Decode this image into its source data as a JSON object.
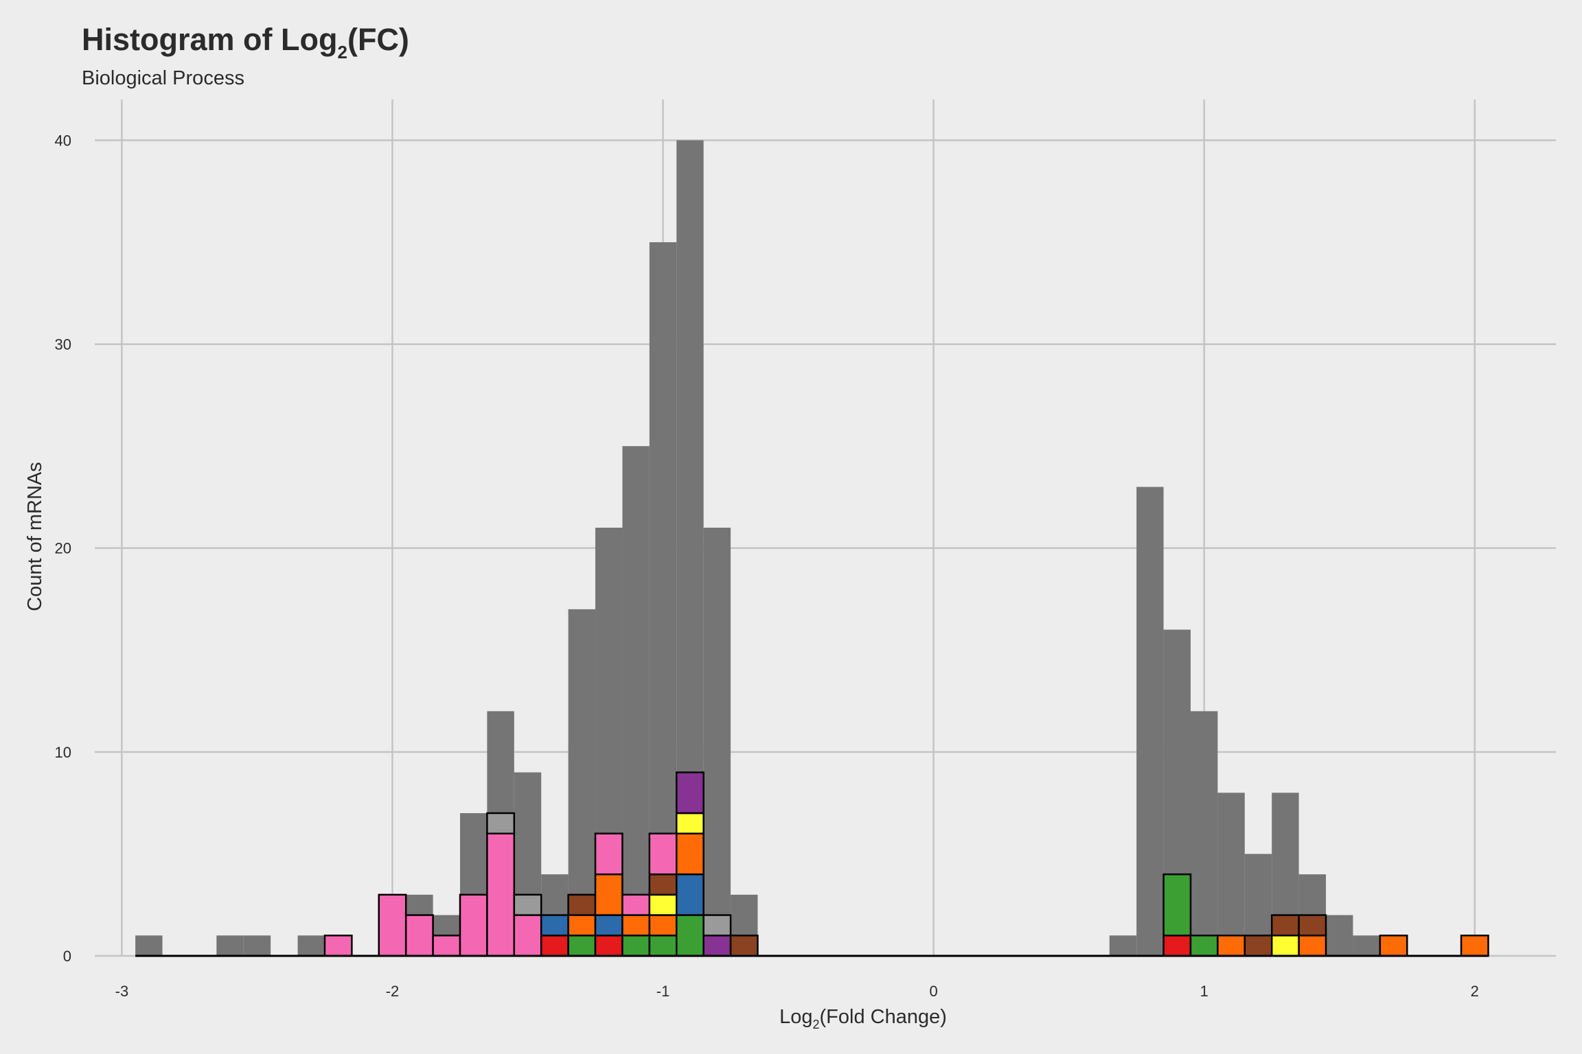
{
  "chart_data": {
    "type": "bar",
    "title": "Histogram of Log",
    "title_sub": "2",
    "title_suffix": "(FC)",
    "subtitle": "Biological Process",
    "xlabel": "Log",
    "xlabel_sub": "2",
    "xlabel_suffix": "(Fold Change)",
    "ylabel": "Count of mRNAs",
    "xlim": [
      -3.1,
      2.3
    ],
    "ylim": [
      0,
      42
    ],
    "x_ticks": [
      -3,
      -2,
      -1,
      0,
      1,
      2
    ],
    "x_tick_labels": [
      "-3",
      "-2",
      "-1",
      "0",
      "1",
      "2"
    ],
    "y_ticks": [
      0,
      10,
      20,
      30,
      40
    ],
    "y_tick_labels": [
      "0",
      "10",
      "20",
      "30",
      "40"
    ],
    "grid": true,
    "bin_width": 0.1,
    "bin_centers": [
      -2.9,
      -2.8,
      -2.7,
      -2.6,
      -2.5,
      -2.4,
      -2.3,
      -2.2,
      -2.1,
      -2.0,
      -1.9,
      -1.8,
      -1.7,
      -1.6,
      -1.5,
      -1.4,
      -1.3,
      -1.2,
      -1.1,
      -1.0,
      -0.9,
      -0.8,
      -0.7,
      -0.6,
      -0.5,
      -0.4,
      -0.3,
      -0.2,
      -0.1,
      0.0,
      0.1,
      0.2,
      0.3,
      0.4,
      0.5,
      0.6,
      0.7,
      0.8,
      0.9,
      1.0,
      1.1,
      1.2,
      1.3,
      1.4,
      1.5,
      1.6,
      1.7,
      1.8,
      1.9,
      2.0
    ],
    "series": [
      {
        "color": "#757575",
        "values": [
          1,
          0,
          0,
          1,
          1,
          0,
          1,
          0,
          0,
          0,
          3,
          2,
          7,
          12,
          9,
          4,
          17,
          21,
          25,
          35,
          40,
          21,
          3,
          0,
          0,
          0,
          0,
          0,
          0,
          0,
          0,
          0,
          0,
          0,
          0,
          0,
          1,
          23,
          16,
          12,
          8,
          5,
          8,
          4,
          2,
          1,
          0,
          0,
          0,
          0
        ]
      },
      {
        "color": "#e41a1c",
        "values": [
          0,
          0,
          0,
          0,
          0,
          0,
          0,
          0,
          0,
          0,
          0,
          0,
          0,
          0,
          0,
          1,
          0,
          1,
          0,
          0,
          0,
          0,
          0,
          0,
          0,
          0,
          0,
          0,
          0,
          0,
          0,
          0,
          0,
          0,
          0,
          0,
          0,
          0,
          1,
          0,
          0,
          0,
          0,
          0,
          0,
          0,
          0,
          0,
          0,
          0
        ]
      },
      {
        "color": "#3b9f34",
        "values": [
          0,
          0,
          0,
          0,
          0,
          0,
          0,
          0,
          0,
          0,
          0,
          0,
          0,
          0,
          0,
          0,
          1,
          0,
          1,
          1,
          2,
          0,
          0,
          0,
          0,
          0,
          0,
          0,
          0,
          0,
          0,
          0,
          0,
          0,
          0,
          0,
          0,
          0,
          3,
          1,
          0,
          0,
          0,
          0,
          0,
          0,
          0,
          0,
          0,
          0
        ]
      },
      {
        "color": "#2b6aab",
        "values": [
          0,
          0,
          0,
          0,
          0,
          0,
          0,
          0,
          0,
          0,
          0,
          0,
          0,
          0,
          0,
          1,
          0,
          1,
          0,
          0,
          2,
          0,
          0,
          0,
          0,
          0,
          0,
          0,
          0,
          0,
          0,
          0,
          0,
          0,
          0,
          0,
          0,
          0,
          0,
          0,
          0,
          0,
          0,
          0,
          0,
          0,
          0,
          0,
          0,
          0
        ]
      },
      {
        "color": "#ff6b06",
        "values": [
          0,
          0,
          0,
          0,
          0,
          0,
          0,
          0,
          0,
          0,
          0,
          0,
          0,
          0,
          0,
          0,
          1,
          2,
          1,
          1,
          2,
          0,
          0,
          0,
          0,
          0,
          0,
          0,
          0,
          0,
          0,
          0,
          0,
          0,
          0,
          0,
          0,
          0,
          0,
          0,
          1,
          0,
          0,
          1,
          0,
          0,
          1,
          0,
          0,
          1
        ]
      },
      {
        "color": "#ffff33",
        "values": [
          0,
          0,
          0,
          0,
          0,
          0,
          0,
          0,
          0,
          0,
          0,
          0,
          0,
          0,
          0,
          0,
          0,
          0,
          0,
          1,
          1,
          0,
          0,
          0,
          0,
          0,
          0,
          0,
          0,
          0,
          0,
          0,
          0,
          0,
          0,
          0,
          0,
          0,
          0,
          0,
          0,
          0,
          1,
          0,
          0,
          0,
          0,
          0,
          0,
          0
        ]
      },
      {
        "color": "#8b4220",
        "values": [
          0,
          0,
          0,
          0,
          0,
          0,
          0,
          0,
          0,
          0,
          0,
          0,
          0,
          0,
          0,
          0,
          1,
          0,
          0,
          1,
          0,
          0,
          1,
          0,
          0,
          0,
          0,
          0,
          0,
          0,
          0,
          0,
          0,
          0,
          0,
          0,
          0,
          0,
          0,
          0,
          0,
          1,
          1,
          1,
          0,
          0,
          0,
          0,
          0,
          0
        ]
      },
      {
        "color": "#873394",
        "values": [
          0,
          0,
          0,
          0,
          0,
          0,
          0,
          0,
          0,
          0,
          0,
          0,
          0,
          0,
          0,
          0,
          0,
          0,
          0,
          0,
          2,
          1,
          0,
          0,
          0,
          0,
          0,
          0,
          0,
          0,
          0,
          0,
          0,
          0,
          0,
          0,
          0,
          0,
          0,
          0,
          0,
          0,
          0,
          0,
          0,
          0,
          0,
          0,
          0,
          0
        ]
      },
      {
        "color": "#f468b3",
        "values": [
          0,
          0,
          0,
          0,
          0,
          0,
          0,
          1,
          0,
          3,
          2,
          1,
          3,
          6,
          2,
          0,
          0,
          2,
          1,
          2,
          0,
          0,
          0,
          0,
          0,
          0,
          0,
          0,
          0,
          0,
          0,
          0,
          0,
          0,
          0,
          0,
          0,
          0,
          0,
          0,
          0,
          0,
          0,
          0,
          0,
          0,
          0,
          0,
          0,
          0
        ]
      },
      {
        "color": "#9a9a9a",
        "values": [
          0,
          0,
          0,
          0,
          0,
          0,
          0,
          0,
          0,
          0,
          0,
          0,
          0,
          1,
          1,
          0,
          0,
          0,
          0,
          0,
          0,
          1,
          0,
          0,
          0,
          0,
          0,
          0,
          0,
          0,
          0,
          0,
          0,
          0,
          0,
          0,
          0,
          0,
          0,
          0,
          0,
          0,
          0,
          0,
          0,
          0,
          0,
          0,
          0,
          0
        ]
      }
    ]
  }
}
